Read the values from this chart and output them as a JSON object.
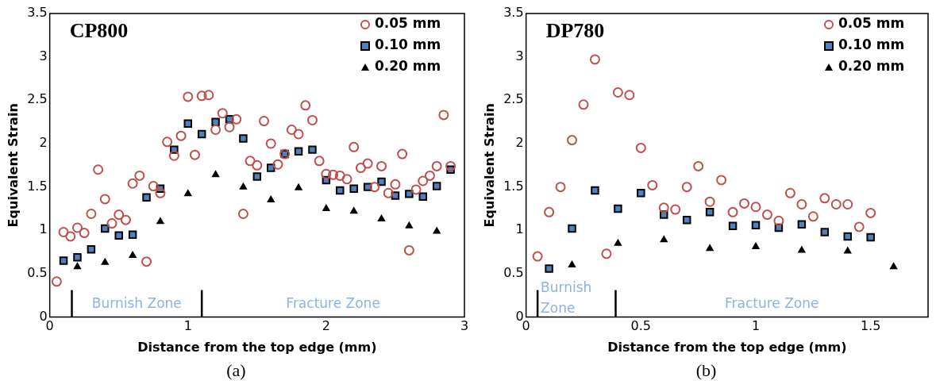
{
  "chart_data": [
    {
      "type": "scatter",
      "title": "CP800",
      "xlabel": "Distance from the top edge (mm)",
      "ylabel": "Equivalent Strain",
      "xlim": [
        0,
        3
      ],
      "xticks": [
        0,
        1,
        2,
        3
      ],
      "ylim": [
        0,
        3.5
      ],
      "yticks": [
        0,
        0.5,
        1,
        1.5,
        2,
        2.5,
        3,
        3.5
      ],
      "grid": false,
      "legend": "top right",
      "series": [
        {
          "name": "0.05 mm",
          "color": "#c0504d",
          "marker": "circle",
          "x": [
            0.05,
            0.1,
            0.15,
            0.2,
            0.25,
            0.3,
            0.35,
            0.4,
            0.45,
            0.5,
            0.55,
            0.6,
            0.65,
            0.7,
            0.75,
            0.8,
            0.85,
            0.9,
            0.95,
            1.0,
            1.05,
            1.1,
            1.15,
            1.2,
            1.25,
            1.3,
            1.35,
            1.4,
            1.45,
            1.5,
            1.55,
            1.6,
            1.65,
            1.7,
            1.75,
            1.8,
            1.85,
            1.9,
            1.95,
            2.0,
            2.05,
            2.1,
            2.15,
            2.2,
            2.25,
            2.3,
            2.35,
            2.4,
            2.45,
            2.5,
            2.55,
            2.6,
            2.65,
            2.7,
            2.75,
            2.8,
            2.85,
            2.9
          ],
          "values": [
            0.41,
            0.98,
            0.93,
            1.03,
            0.97,
            1.19,
            1.7,
            1.36,
            1.08,
            1.18,
            1.12,
            1.54,
            1.63,
            0.64,
            1.51,
            1.43,
            2.02,
            1.86,
            2.09,
            2.54,
            1.87,
            2.55,
            2.56,
            2.16,
            2.35,
            2.19,
            2.28,
            1.19,
            1.8,
            1.75,
            2.26,
            2.0,
            1.76,
            1.88,
            2.16,
            2.11,
            2.44,
            2.27,
            1.8,
            1.65,
            1.64,
            1.63,
            1.59,
            1.96,
            1.72,
            1.77,
            1.5,
            1.74,
            1.43,
            1.53,
            1.88,
            0.77,
            1.47,
            1.57,
            1.63,
            1.74,
            2.33,
            1.74
          ]
        },
        {
          "name": "0.10 mm",
          "color": "#4f81bd",
          "marker": "square",
          "x": [
            0.1,
            0.2,
            0.3,
            0.4,
            0.5,
            0.6,
            0.7,
            0.8,
            0.9,
            1.0,
            1.1,
            1.2,
            1.3,
            1.4,
            1.5,
            1.6,
            1.7,
            1.8,
            1.9,
            2.0,
            2.1,
            2.2,
            2.3,
            2.4,
            2.5,
            2.6,
            2.7,
            2.8,
            2.9
          ],
          "values": [
            0.65,
            0.69,
            0.78,
            1.02,
            0.94,
            0.95,
            1.38,
            1.48,
            1.93,
            2.23,
            2.11,
            2.25,
            2.28,
            2.06,
            1.62,
            1.72,
            1.88,
            1.91,
            1.93,
            1.58,
            1.46,
            1.48,
            1.5,
            1.56,
            1.4,
            1.42,
            1.39,
            1.51,
            1.7
          ]
        },
        {
          "name": "0.20 mm",
          "color": "#000000",
          "marker": "triangle",
          "x": [
            0.2,
            0.4,
            0.6,
            0.8,
            1.0,
            1.2,
            1.4,
            1.6,
            1.8,
            2.0,
            2.2,
            2.4,
            2.6,
            2.8
          ],
          "values": [
            0.58,
            0.63,
            0.71,
            1.1,
            1.42,
            1.64,
            1.5,
            1.35,
            1.49,
            1.25,
            1.22,
            1.13,
            1.05,
            0.99
          ]
        }
      ],
      "ref_lines": [
        {
          "axis": "x",
          "value": 0.16,
          "color": "#000000"
        },
        {
          "axis": "x",
          "value": 1.1,
          "color": "#000000"
        }
      ],
      "annotations": [
        "Burnish Zone",
        "Fracture Zone",
        "(a)"
      ]
    },
    {
      "type": "scatter",
      "title": "DP780",
      "xlabel": "Distance from the top edge (mm)",
      "ylabel": "Equivalent Strain",
      "xlim": [
        0,
        1.75
      ],
      "xticks": [
        0,
        0.5,
        1,
        1.5
      ],
      "ylim": [
        0,
        3.5
      ],
      "yticks": [
        0,
        0.5,
        1,
        1.5,
        2,
        2.5,
        3,
        3.5
      ],
      "grid": false,
      "legend": "top right",
      "series": [
        {
          "name": "0.05 mm",
          "color": "#c0504d",
          "marker": "circle",
          "x": [
            0.05,
            0.1,
            0.15,
            0.2,
            0.25,
            0.3,
            0.35,
            0.4,
            0.45,
            0.5,
            0.55,
            0.6,
            0.65,
            0.7,
            0.75,
            0.8,
            0.85,
            0.9,
            0.95,
            1.0,
            1.05,
            1.1,
            1.15,
            1.2,
            1.25,
            1.3,
            1.35,
            1.4,
            1.45,
            1.5
          ],
          "values": [
            0.7,
            1.21,
            1.5,
            2.04,
            2.45,
            2.97,
            0.73,
            2.59,
            2.56,
            1.95,
            1.52,
            1.26,
            1.24,
            1.5,
            1.74,
            1.33,
            1.58,
            1.21,
            1.31,
            1.27,
            1.18,
            1.11,
            1.43,
            1.3,
            1.16,
            1.37,
            1.3,
            1.3,
            1.04,
            1.2
          ]
        },
        {
          "name": "0.10 mm",
          "color": "#4f81bd",
          "marker": "square",
          "x": [
            0.1,
            0.2,
            0.3,
            0.4,
            0.5,
            0.6,
            0.7,
            0.8,
            0.9,
            1.0,
            1.1,
            1.2,
            1.3,
            1.4,
            1.5
          ],
          "values": [
            0.56,
            1.02,
            1.46,
            1.25,
            1.43,
            1.18,
            1.12,
            1.21,
            1.05,
            1.06,
            1.03,
            1.07,
            0.98,
            0.93,
            0.92
          ]
        },
        {
          "name": "0.20 mm",
          "color": "#000000",
          "marker": "triangle",
          "x": [
            0.2,
            0.4,
            0.6,
            0.8,
            1.0,
            1.2,
            1.4,
            1.6
          ],
          "values": [
            0.6,
            0.85,
            0.89,
            0.79,
            0.81,
            0.77,
            0.76,
            0.58
          ]
        }
      ],
      "ref_lines": [
        {
          "axis": "x",
          "value": 0.05,
          "color": "#000000"
        },
        {
          "axis": "x",
          "value": 0.39,
          "color": "#000000"
        }
      ],
      "annotations": [
        "Burnish\nZone",
        "Fracture Zone",
        "(b)"
      ]
    }
  ]
}
